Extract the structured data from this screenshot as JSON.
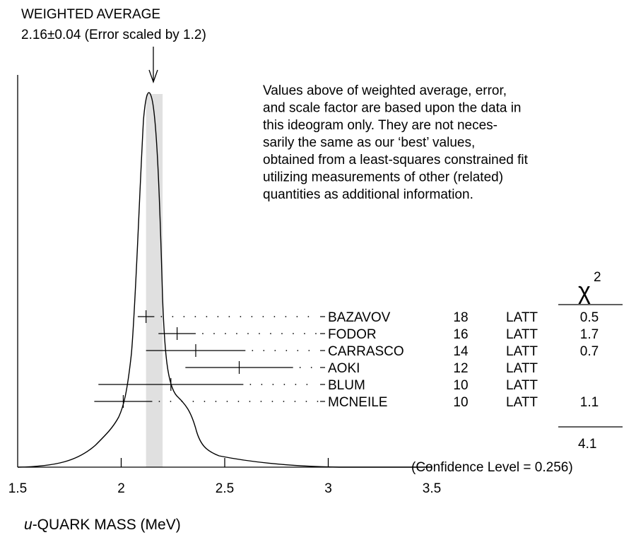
{
  "chart_data": {
    "type": "ideogram",
    "title": "WEIGHTED AVERAGE",
    "subtitle": "2.16±0.04 (Error scaled by 1.2)",
    "weighted_average": 2.16,
    "weighted_error": 0.04,
    "scale_factor": 1.2,
    "xlabel_italic": "u",
    "xlabel_rest": "-QUARK MASS (MeV)",
    "xlim": [
      1.5,
      3.5
    ],
    "x_ticks": [
      1.5,
      2,
      2.5,
      3,
      3.5
    ],
    "x_tick_labels": [
      "1.5",
      "2",
      "2.5",
      "3",
      "3.5"
    ],
    "chi2_header_symbol": "χ",
    "chi2_header_exp": "2",
    "measurements": [
      {
        "name": "BAZAVOV",
        "year": "18",
        "tech": "LATT",
        "value": 2.12,
        "err_lo": 0.04,
        "err_hi": 0.04,
        "chi2": "0.5"
      },
      {
        "name": "FODOR",
        "year": "16",
        "tech": "LATT",
        "value": 2.27,
        "err_lo": 0.09,
        "err_hi": 0.09,
        "chi2": "1.7"
      },
      {
        "name": "CARRASCO",
        "year": "14",
        "tech": "LATT",
        "value": 2.36,
        "err_lo": 0.24,
        "err_hi": 0.24,
        "chi2": "0.7"
      },
      {
        "name": "AOKI",
        "year": "12",
        "tech": "LATT",
        "value": 2.57,
        "err_lo": 0.26,
        "err_hi": 0.26,
        "chi2": ""
      },
      {
        "name": "BLUM",
        "year": "10",
        "tech": "LATT",
        "value": 2.24,
        "err_lo": 0.35,
        "err_hi": 0.35,
        "chi2": ""
      },
      {
        "name": "MCNEILE",
        "year": "10",
        "tech": "LATT",
        "value": 2.01,
        "err_lo": 0.14,
        "err_hi": 0.14,
        "chi2": "1.1"
      }
    ],
    "chi2_total": "4.1",
    "confidence_level_text": "(Confidence Level = 0.256)",
    "note_lines": [
      "Values above of weighted average, error,",
      "and scale factor are based upon the data in",
      "this ideogram only.  They are not neces-",
      "sarily the same as our ‘best’ values,",
      "obtained from a least-squares constrained fit",
      "utilizing measurements of other (related)",
      "quantities as additional information."
    ]
  }
}
